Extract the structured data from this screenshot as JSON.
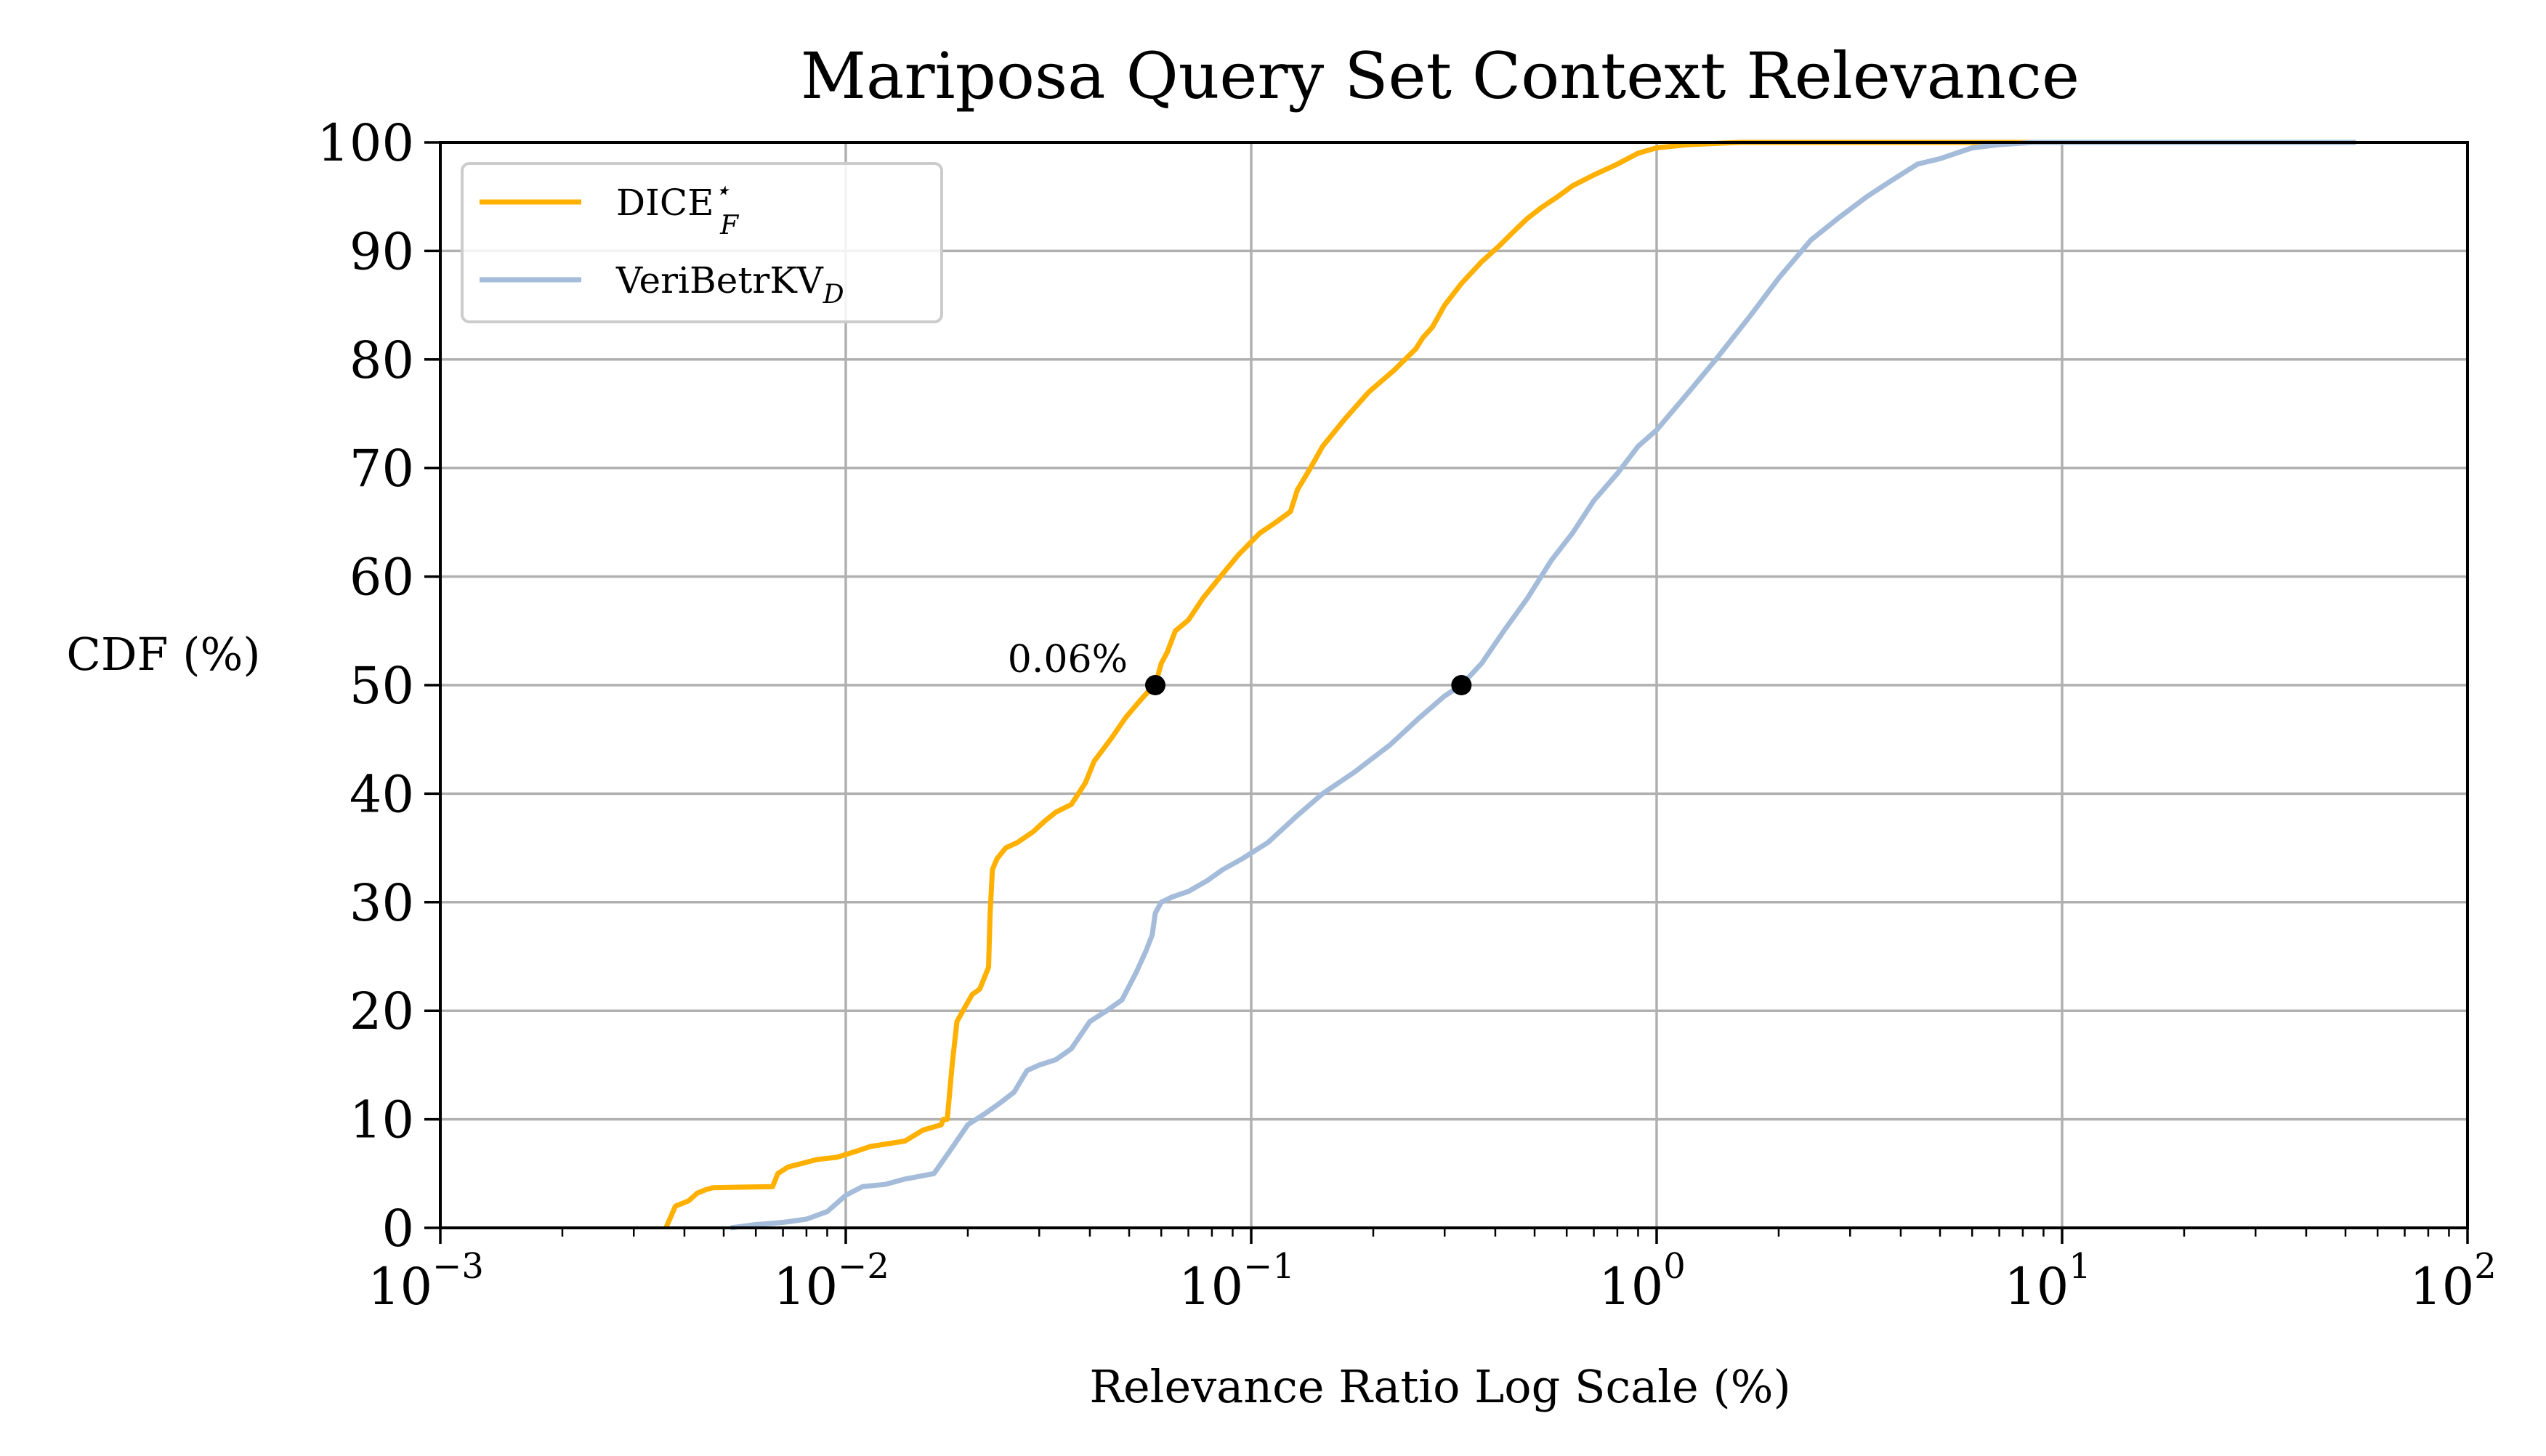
{
  "chart_data": {
    "type": "line",
    "title": "Mariposa Query Set Context Relevance",
    "xlabel": "Relevance Ratio Log Scale (%)",
    "ylabel": "CDF (%)",
    "xscale": "log",
    "xlim": [
      0.001,
      100
    ],
    "ylim": [
      0,
      100
    ],
    "grid": true,
    "legend_position": "top-left",
    "xticks": [
      {
        "base": "10",
        "exp": "−3"
      },
      {
        "base": "10",
        "exp": "−2"
      },
      {
        "base": "10",
        "exp": "−1"
      },
      {
        "base": "10",
        "exp": "0"
      },
      {
        "base": "10",
        "exp": "1"
      },
      {
        "base": "10",
        "exp": "2"
      }
    ],
    "yticks": [
      "0",
      "10",
      "20",
      "30",
      "40",
      "50",
      "60",
      "70",
      "80",
      "90",
      "100"
    ],
    "series": [
      {
        "name": "DICE",
        "name_sup": "⋆",
        "name_sub": "F",
        "color": "#FFB000",
        "x": [
          0.0036,
          0.0037,
          0.0038,
          0.0041,
          0.0043,
          0.0045,
          0.0047,
          0.0066,
          0.0068,
          0.0072,
          0.0085,
          0.0095,
          0.0105,
          0.0115,
          0.014,
          0.0155,
          0.0172,
          0.0174,
          0.0178,
          0.0183,
          0.0188,
          0.0198,
          0.0205,
          0.0214,
          0.0225,
          0.0227,
          0.023,
          0.0236,
          0.0248,
          0.0265,
          0.029,
          0.031,
          0.033,
          0.036,
          0.039,
          0.041,
          0.045,
          0.049,
          0.053,
          0.056,
          0.058,
          0.06,
          0.062,
          0.065,
          0.07,
          0.076,
          0.084,
          0.093,
          0.105,
          0.115,
          0.125,
          0.13,
          0.135,
          0.14,
          0.15,
          0.17,
          0.195,
          0.225,
          0.255,
          0.265,
          0.28,
          0.3,
          0.33,
          0.37,
          0.41,
          0.45,
          0.48,
          0.52,
          0.57,
          0.62,
          0.7,
          0.8,
          0.9,
          1.0,
          1.2,
          1.6,
          2.5,
          5.0,
          10.0,
          20.0,
          53.0
        ],
        "y": [
          0,
          1.0,
          2.0,
          2.5,
          3.2,
          3.5,
          3.7,
          3.8,
          5.0,
          5.6,
          6.3,
          6.5,
          7.0,
          7.5,
          8.0,
          9.0,
          9.5,
          10,
          10,
          15.0,
          19.0,
          20.5,
          21.5,
          22.0,
          24.0,
          29.0,
          33.0,
          34.0,
          35.0,
          35.5,
          36.5,
          37.5,
          38.3,
          39.0,
          41.0,
          43.0,
          45.0,
          47.0,
          48.5,
          49.5,
          50.0,
          52.0,
          53.0,
          55.0,
          56.0,
          58.0,
          60.0,
          62.0,
          64.0,
          65.0,
          66.0,
          68.0,
          69.0,
          70.0,
          72.0,
          74.5,
          77.0,
          79.0,
          81.0,
          82.0,
          83.0,
          85.0,
          87.0,
          89.0,
          90.5,
          92.0,
          93.0,
          94.0,
          95.0,
          96.0,
          97.0,
          98.0,
          99.0,
          99.5,
          99.8,
          100,
          100,
          100,
          100,
          100,
          100
        ]
      },
      {
        "name": "VeriBetrKV",
        "name_sup": "",
        "name_sub": "D",
        "color": "#A4BCDA",
        "x": [
          0.0052,
          0.006,
          0.007,
          0.008,
          0.009,
          0.01,
          0.011,
          0.0125,
          0.014,
          0.0165,
          0.018,
          0.02,
          0.022,
          0.024,
          0.026,
          0.028,
          0.03,
          0.033,
          0.036,
          0.04,
          0.044,
          0.048,
          0.052,
          0.055,
          0.057,
          0.058,
          0.06,
          0.064,
          0.07,
          0.078,
          0.085,
          0.095,
          0.11,
          0.13,
          0.15,
          0.18,
          0.22,
          0.26,
          0.3,
          0.33,
          0.37,
          0.42,
          0.48,
          0.55,
          0.62,
          0.7,
          0.8,
          0.9,
          1.0,
          1.2,
          1.4,
          1.7,
          2.0,
          2.4,
          2.8,
          3.3,
          3.8,
          4.4,
          5.0,
          6.0,
          7.0,
          8.5,
          10.0,
          13.0,
          18.0,
          30.0,
          53.0
        ],
        "y": [
          0,
          0.3,
          0.5,
          0.8,
          1.5,
          3.0,
          3.8,
          4.0,
          4.5,
          5.0,
          7.0,
          9.5,
          10.5,
          11.5,
          12.5,
          14.5,
          15.0,
          15.5,
          16.5,
          19.0,
          20.0,
          21.0,
          23.5,
          25.5,
          27.0,
          29.0,
          30.0,
          30.5,
          31.0,
          32.0,
          33.0,
          34.0,
          35.5,
          38.0,
          40.0,
          42.0,
          44.5,
          47.0,
          49.0,
          50.0,
          52.0,
          55.0,
          58.0,
          61.5,
          64.0,
          67.0,
          69.5,
          72.0,
          73.5,
          77.0,
          80.0,
          84.0,
          87.5,
          91.0,
          93.0,
          95.0,
          96.5,
          98.0,
          98.5,
          99.5,
          99.8,
          100,
          100,
          100,
          100,
          100,
          100
        ]
      }
    ],
    "markers": [
      {
        "x": 0.058,
        "y": 50,
        "color": "#000000"
      },
      {
        "x": 0.33,
        "y": 50,
        "color": "#000000"
      }
    ],
    "annotations": [
      {
        "text": "0.06%",
        "x": 0.058,
        "y": 50
      }
    ]
  }
}
